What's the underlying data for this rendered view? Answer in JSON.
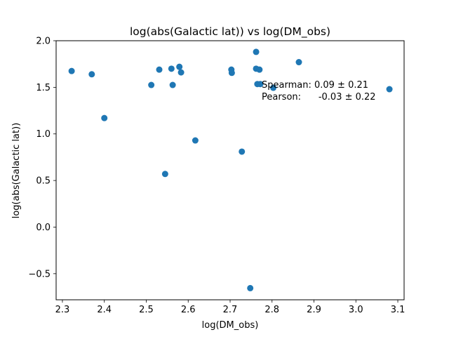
{
  "chart_data": {
    "type": "scatter",
    "title": "log(abs(Galactic lat)) vs log(DM_obs)",
    "xlabel": "log(DM_obs)",
    "ylabel": "log(abs(Galactic lat))",
    "xlim": [
      2.285,
      3.115
    ],
    "ylim": [
      -0.78,
      2.0
    ],
    "xticks": [
      "2.3",
      "2.4",
      "2.5",
      "2.6",
      "2.7",
      "2.8",
      "2.9",
      "3.0",
      "3.1"
    ],
    "yticks": [
      "-0.5",
      "0.0",
      "0.5",
      "1.0",
      "1.5",
      "2.0"
    ],
    "grid": false,
    "marker_color": "#1f77b4",
    "points": [
      {
        "x": 2.322,
        "y": 1.675
      },
      {
        "x": 2.37,
        "y": 1.64
      },
      {
        "x": 2.4,
        "y": 1.17
      },
      {
        "x": 2.512,
        "y": 1.525
      },
      {
        "x": 2.531,
        "y": 1.69
      },
      {
        "x": 2.545,
        "y": 0.57
      },
      {
        "x": 2.56,
        "y": 1.7
      },
      {
        "x": 2.563,
        "y": 1.525
      },
      {
        "x": 2.579,
        "y": 1.72
      },
      {
        "x": 2.583,
        "y": 1.66
      },
      {
        "x": 2.617,
        "y": 0.93
      },
      {
        "x": 2.703,
        "y": 1.69
      },
      {
        "x": 2.704,
        "y": 1.655
      },
      {
        "x": 2.728,
        "y": 0.81
      },
      {
        "x": 2.748,
        "y": -0.655
      },
      {
        "x": 2.762,
        "y": 1.88
      },
      {
        "x": 2.762,
        "y": 1.7
      },
      {
        "x": 2.765,
        "y": 1.535
      },
      {
        "x": 2.77,
        "y": 1.69
      },
      {
        "x": 2.772,
        "y": 1.535
      },
      {
        "x": 2.803,
        "y": 1.495
      },
      {
        "x": 2.864,
        "y": 1.77
      },
      {
        "x": 3.08,
        "y": 1.48
      }
    ],
    "annotations": [
      "Spearman: 0.09 ± 0.21",
      "Pearson:      -0.03 ± 0.22"
    ]
  }
}
